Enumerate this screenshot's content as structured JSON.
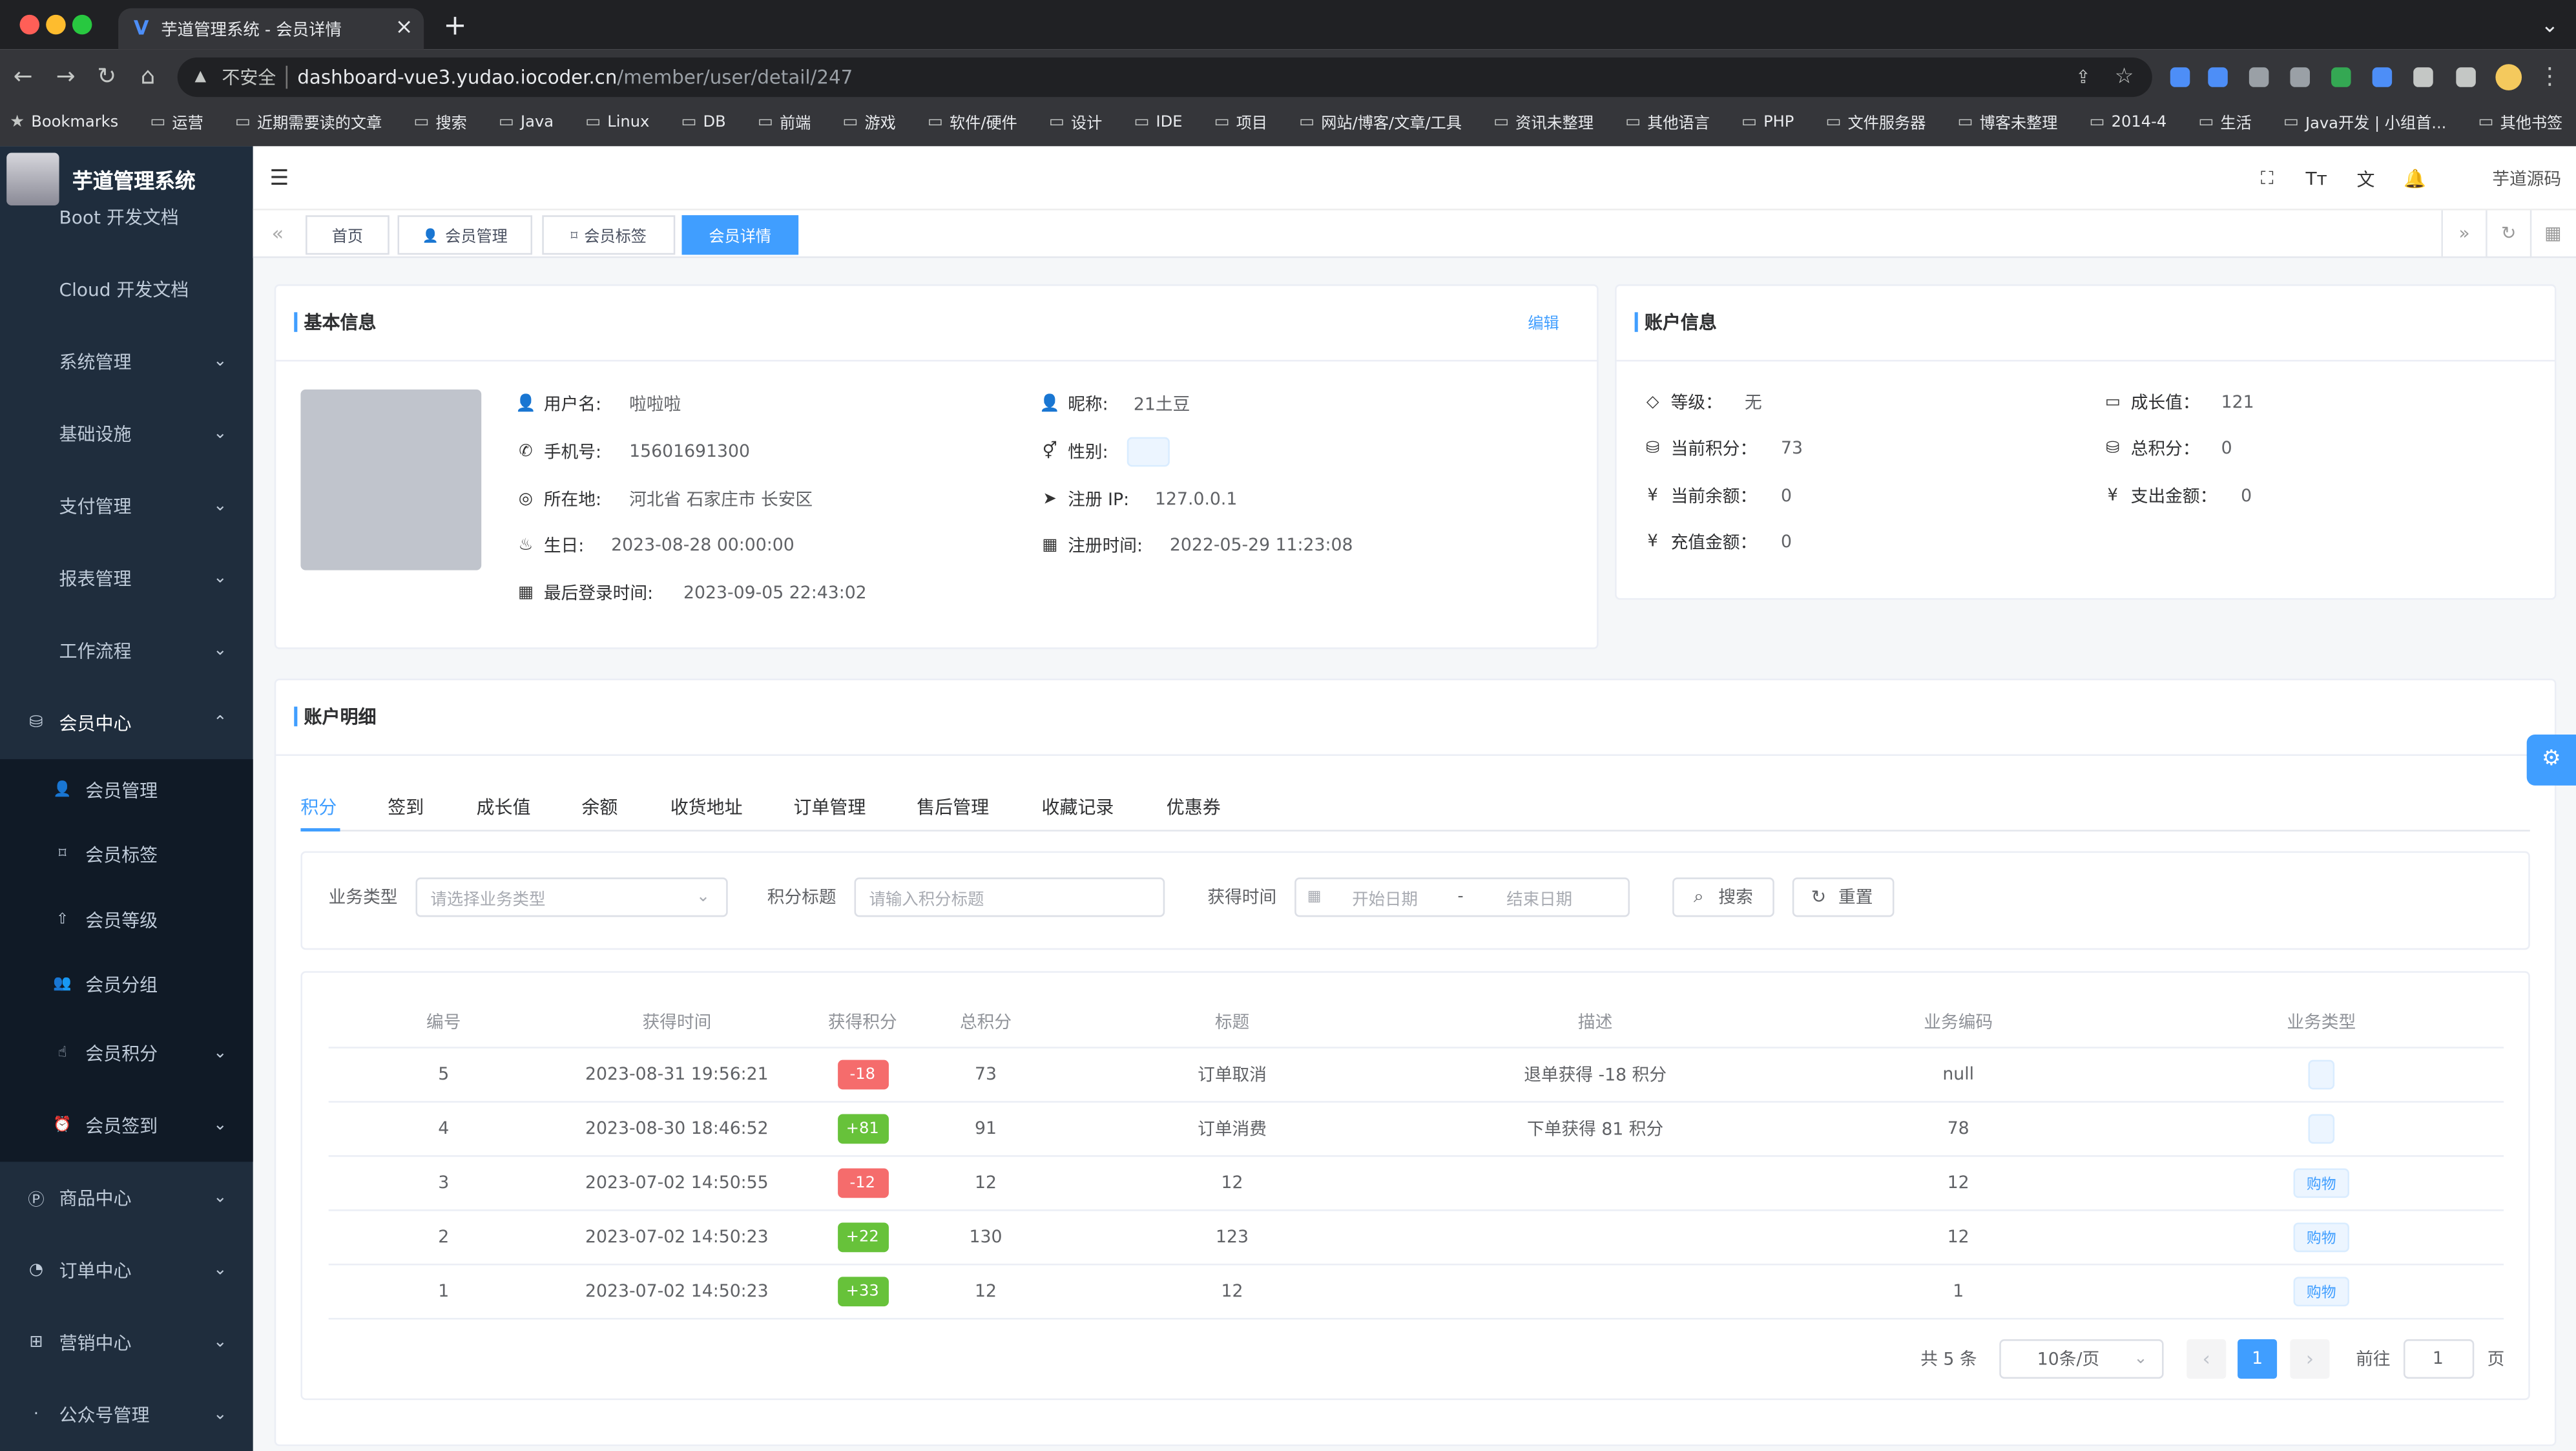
{
  "browser": {
    "tab_title": "芋道管理系统 - 会员详情",
    "security": "不安全",
    "url_host": "dashboard-vue3.yudao.iocoder.cn",
    "url_path": "/member/user/detail/247",
    "bookmarks": [
      "Bookmarks",
      "运营",
      "近期需要读的文章",
      "搜索",
      "Java",
      "Linux",
      "DB",
      "前端",
      "游戏",
      "软件/硬件",
      "设计",
      "IDE",
      "项目",
      "网站/博客/文章/工具",
      "资讯未整理",
      "其他语言",
      "PHP",
      "文件服务器",
      "博客未整理",
      "2014-4",
      "生活",
      "Java开发 | 小组首...",
      "其他书签"
    ]
  },
  "sidebar": {
    "app_name": "芋道管理系统",
    "items": [
      "Boot 开发文档",
      "Cloud 开发文档",
      "系统管理",
      "基础设施",
      "支付管理",
      "报表管理",
      "工作流程",
      "会员中心"
    ],
    "sub_items": [
      "会员管理",
      "会员标签",
      "会员等级",
      "会员分组",
      "会员积分",
      "会员签到"
    ],
    "items_after": [
      "商品中心",
      "订单中心",
      "营销中心",
      "公众号管理"
    ]
  },
  "header": {
    "source_link": "芋道源码",
    "tabs": [
      "首页",
      "会员管理",
      "会员标签",
      "会员详情"
    ]
  },
  "basic_info": {
    "title": "基本信息",
    "edit": "编辑",
    "fields": [
      {
        "label": "用户名:",
        "value": "啦啦啦"
      },
      {
        "label": "昵称:",
        "value": "21土豆"
      },
      {
        "label": "手机号:",
        "value": "15601691300"
      },
      {
        "label": "性别:"
      },
      {
        "label": "所在地:",
        "value": "河北省 石家庄市 长安区"
      },
      {
        "label": "注册 IP:",
        "value": "127.0.0.1"
      },
      {
        "label": "生日:",
        "value": "2023-08-28 00:00:00"
      },
      {
        "label": "注册时间:",
        "value": "2022-05-29 11:23:08"
      },
      {
        "label": "最后登录时间:",
        "value": "2023-09-05 22:43:02"
      }
    ]
  },
  "account_info": {
    "title": "账户信息",
    "fields": [
      {
        "label": "等级：",
        "value": "无"
      },
      {
        "label": "成长值：",
        "value": "121"
      },
      {
        "label": "当前积分：",
        "value": "73"
      },
      {
        "label": "总积分：",
        "value": "0"
      },
      {
        "label": "当前余额：",
        "value": "0"
      },
      {
        "label": "支出金额：",
        "value": "0"
      },
      {
        "label": "充值金额：",
        "value": "0"
      }
    ]
  },
  "account_detail": {
    "title": "账户明细",
    "tabs": [
      "积分",
      "签到",
      "成长值",
      "余额",
      "收货地址",
      "订单管理",
      "售后管理",
      "收藏记录",
      "优惠券"
    ],
    "filters": {
      "type_label": "业务类型",
      "type_placeholder": "请选择业务类型",
      "title_label": "积分标题",
      "title_placeholder": "请输入积分标题",
      "time_label": "获得时间",
      "start_placeholder": "开始日期",
      "range_separator": "-",
      "end_placeholder": "结束日期",
      "search": "搜索",
      "reset": "重置"
    },
    "table": {
      "columns": [
        "编号",
        "获得时间",
        "获得积分",
        "总积分",
        "标题",
        "描述",
        "业务编码",
        "业务类型"
      ],
      "rows": [
        [
          "5",
          "2023-08-31 19:56:21",
          "-18",
          "73",
          "订单取消",
          "退单获得 -18 积分",
          "null",
          null
        ],
        [
          "4",
          "2023-08-30 18:46:52",
          "+81",
          "91",
          "订单消费",
          "下单获得 81 积分",
          "78",
          null
        ],
        [
          "3",
          "2023-07-02 14:50:55",
          "-12",
          "12",
          "12",
          null,
          "12",
          "购物"
        ],
        [
          "2",
          "2023-07-02 14:50:23",
          "+22",
          "130",
          "123",
          null,
          "12",
          "购物"
        ],
        [
          "1",
          "2023-07-02 14:50:23",
          "+33",
          "12",
          "12",
          null,
          "1",
          "购物"
        ]
      ]
    },
    "pagination": {
      "total": "共 5 条",
      "page_size": "10条/页",
      "current": "1",
      "goto": "前往",
      "goto_value": "1",
      "page_unit": "页"
    }
  }
}
